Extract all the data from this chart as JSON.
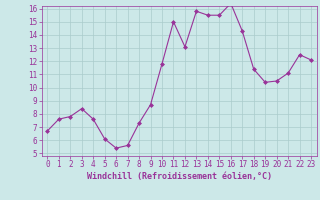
{
  "x": [
    0,
    1,
    2,
    3,
    4,
    5,
    6,
    7,
    8,
    9,
    10,
    11,
    12,
    13,
    14,
    15,
    16,
    17,
    18,
    19,
    20,
    21,
    22,
    23
  ],
  "y": [
    6.7,
    7.6,
    7.8,
    8.4,
    7.6,
    6.1,
    5.4,
    5.6,
    7.3,
    8.7,
    11.8,
    15.0,
    13.1,
    15.8,
    15.5,
    15.5,
    16.4,
    14.3,
    11.4,
    10.4,
    10.5,
    11.1,
    12.5,
    12.1
  ],
  "line_color": "#993399",
  "marker": "D",
  "marker_size": 2,
  "bg_color": "#cce8e8",
  "grid_color": "#aacccc",
  "xlabel": "Windchill (Refroidissement éolien,°C)",
  "xlabel_color": "#993399",
  "tick_color": "#993399",
  "spine_color": "#993399",
  "ylim": [
    5,
    16
  ],
  "xlim": [
    -0.5,
    23.5
  ],
  "yticks": [
    5,
    6,
    7,
    8,
    9,
    10,
    11,
    12,
    13,
    14,
    15,
    16
  ],
  "xticks": [
    0,
    1,
    2,
    3,
    4,
    5,
    6,
    7,
    8,
    9,
    10,
    11,
    12,
    13,
    14,
    15,
    16,
    17,
    18,
    19,
    20,
    21,
    22,
    23
  ],
  "tick_fontsize": 5.5,
  "xlabel_fontsize": 6.0
}
